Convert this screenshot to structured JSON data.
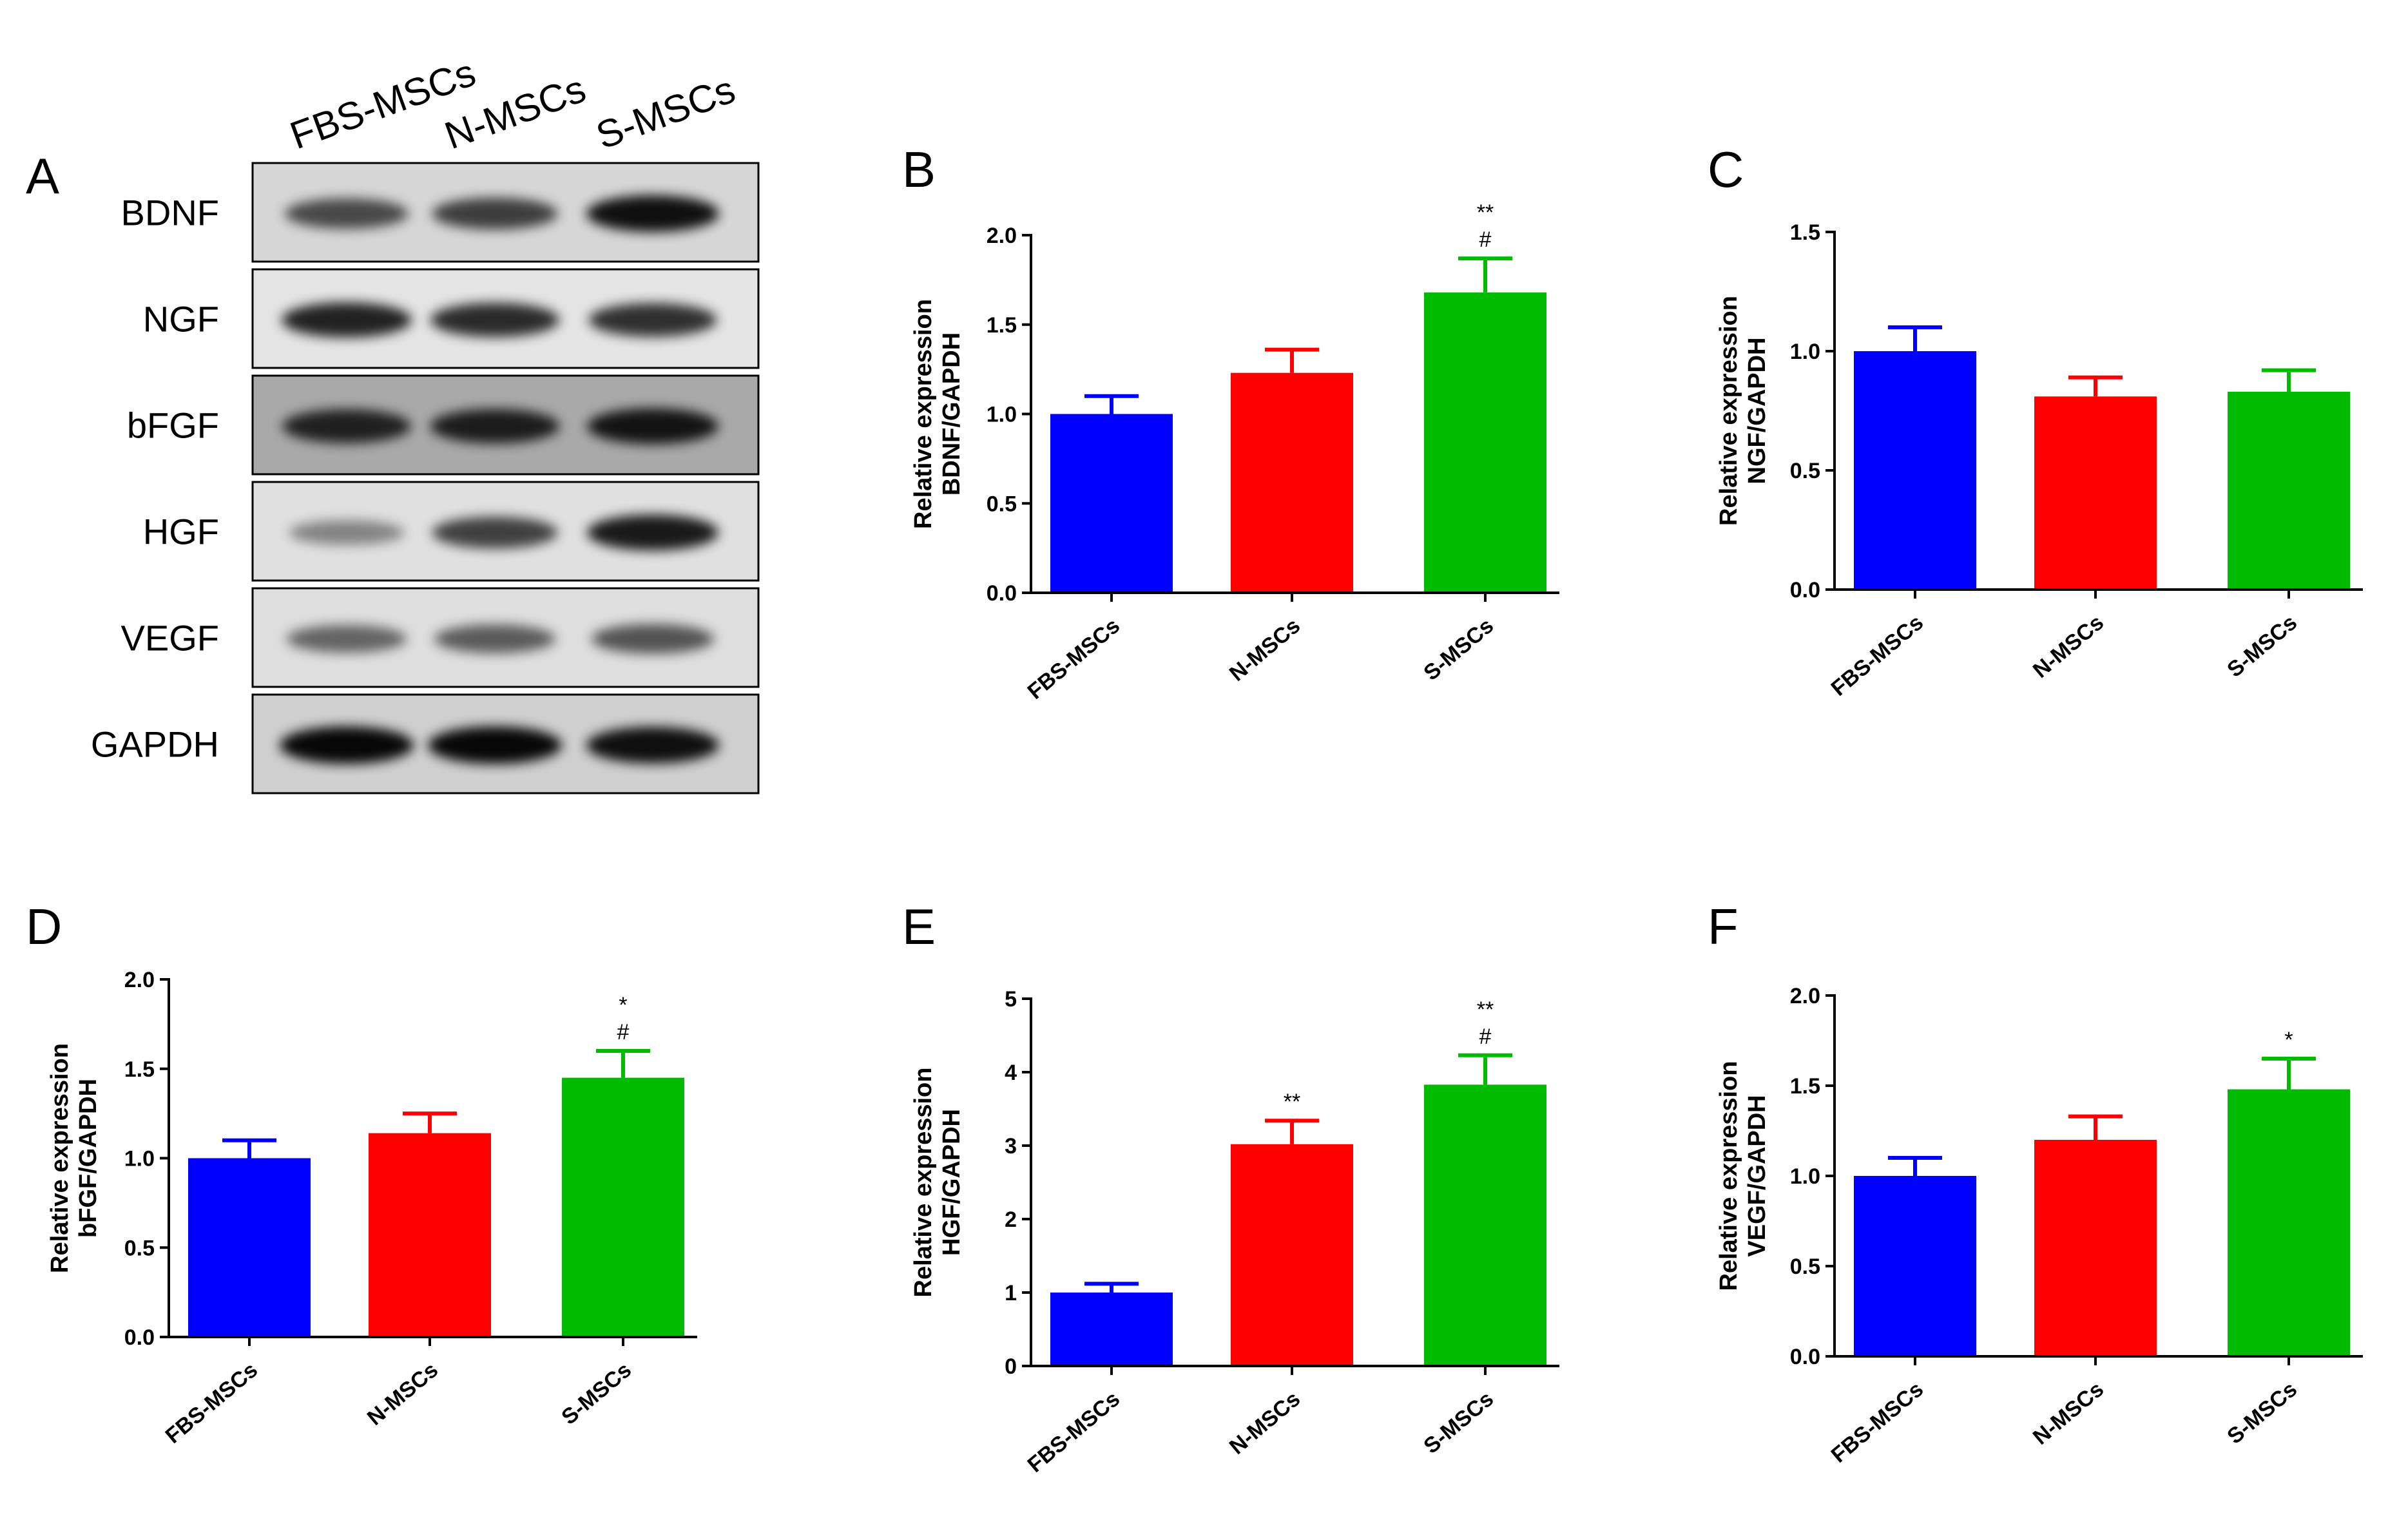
{
  "panel_a": {
    "letter": "A",
    "lanes": [
      "FBS-MSCs",
      "N-MSCs",
      "S-MSCs"
    ],
    "rows": [
      {
        "label": "BDNF",
        "bg": "#d6d6d6",
        "intensity": [
          0.55,
          0.62,
          0.9
        ]
      },
      {
        "label": "NGF",
        "bg": "#e4e4e4",
        "intensity": [
          0.8,
          0.75,
          0.72
        ]
      },
      {
        "label": "bFGF",
        "bg": "#a9a9a9",
        "intensity": [
          0.75,
          0.78,
          0.85
        ]
      },
      {
        "label": "HGF",
        "bg": "#e0e0e0",
        "intensity": [
          0.22,
          0.62,
          0.85
        ]
      },
      {
        "label": "VEGF",
        "bg": "#dedede",
        "intensity": [
          0.4,
          0.45,
          0.5
        ]
      },
      {
        "label": "GAPDH",
        "bg": "#cfcfcf",
        "intensity": [
          0.95,
          0.95,
          0.9
        ]
      }
    ]
  },
  "colors": {
    "FBS-MSCs": "#0000ff",
    "N-MSCs": "#ff0000",
    "S-MSCs": "#00bb00"
  },
  "chart_data": [
    {
      "letter": "B",
      "type": "bar",
      "ylabel_line1": "Relative expression",
      "ylabel_line2": "BDNF/GAPDH",
      "categories": [
        "FBS-MSCs",
        "N-MSCs",
        "S-MSCs"
      ],
      "values": [
        1.0,
        1.23,
        1.68
      ],
      "errors": [
        0.1,
        0.13,
        0.19
      ],
      "ylim": [
        0,
        2.0
      ],
      "yticks": [
        "0.0",
        "0.5",
        "1.0",
        "1.5",
        "2.0"
      ],
      "annotations": [
        [],
        [],
        [
          "**",
          "#"
        ]
      ]
    },
    {
      "letter": "C",
      "type": "bar",
      "ylabel_line1": "Relative expression",
      "ylabel_line2": "NGF/GAPDH",
      "categories": [
        "FBS-MSCs",
        "N-MSCs",
        "S-MSCs"
      ],
      "values": [
        1.0,
        0.81,
        0.83
      ],
      "errors": [
        0.1,
        0.08,
        0.09
      ],
      "ylim": [
        0,
        1.5
      ],
      "yticks": [
        "0.0",
        "0.5",
        "1.0",
        "1.5"
      ],
      "annotations": [
        [],
        [],
        []
      ]
    },
    {
      "letter": "D",
      "type": "bar",
      "ylabel_line1": "Relative expression",
      "ylabel_line2": "bFGF/GAPDH",
      "categories": [
        "FBS-MSCs",
        "N-MSCs",
        "S-MSCs"
      ],
      "values": [
        1.0,
        1.14,
        1.45
      ],
      "errors": [
        0.1,
        0.11,
        0.15
      ],
      "ylim": [
        0,
        2.0
      ],
      "yticks": [
        "0.0",
        "0.5",
        "1.0",
        "1.5",
        "2.0"
      ],
      "annotations": [
        [],
        [],
        [
          "*",
          "#"
        ]
      ]
    },
    {
      "letter": "E",
      "type": "bar",
      "ylabel_line1": "Relative expression",
      "ylabel_line2": "HGF/GAPDH",
      "categories": [
        "FBS-MSCs",
        "N-MSCs",
        "S-MSCs"
      ],
      "values": [
        1.0,
        3.02,
        3.83
      ],
      "errors": [
        0.12,
        0.32,
        0.4
      ],
      "ylim": [
        0,
        5
      ],
      "yticks": [
        "0",
        "1",
        "2",
        "3",
        "4",
        "5"
      ],
      "annotations": [
        [],
        [
          "**"
        ],
        [
          "**",
          "#"
        ]
      ]
    },
    {
      "letter": "F",
      "type": "bar",
      "ylabel_line1": "Relative expression",
      "ylabel_line2": "VEGF/GAPDH",
      "categories": [
        "FBS-MSCs",
        "N-MSCs",
        "S-MSCs"
      ],
      "values": [
        1.0,
        1.2,
        1.48
      ],
      "errors": [
        0.1,
        0.13,
        0.17
      ],
      "ylim": [
        0,
        2.0
      ],
      "yticks": [
        "0.0",
        "0.5",
        "1.0",
        "1.5",
        "2.0"
      ],
      "annotations": [
        [],
        [],
        [
          "*"
        ]
      ]
    }
  ]
}
